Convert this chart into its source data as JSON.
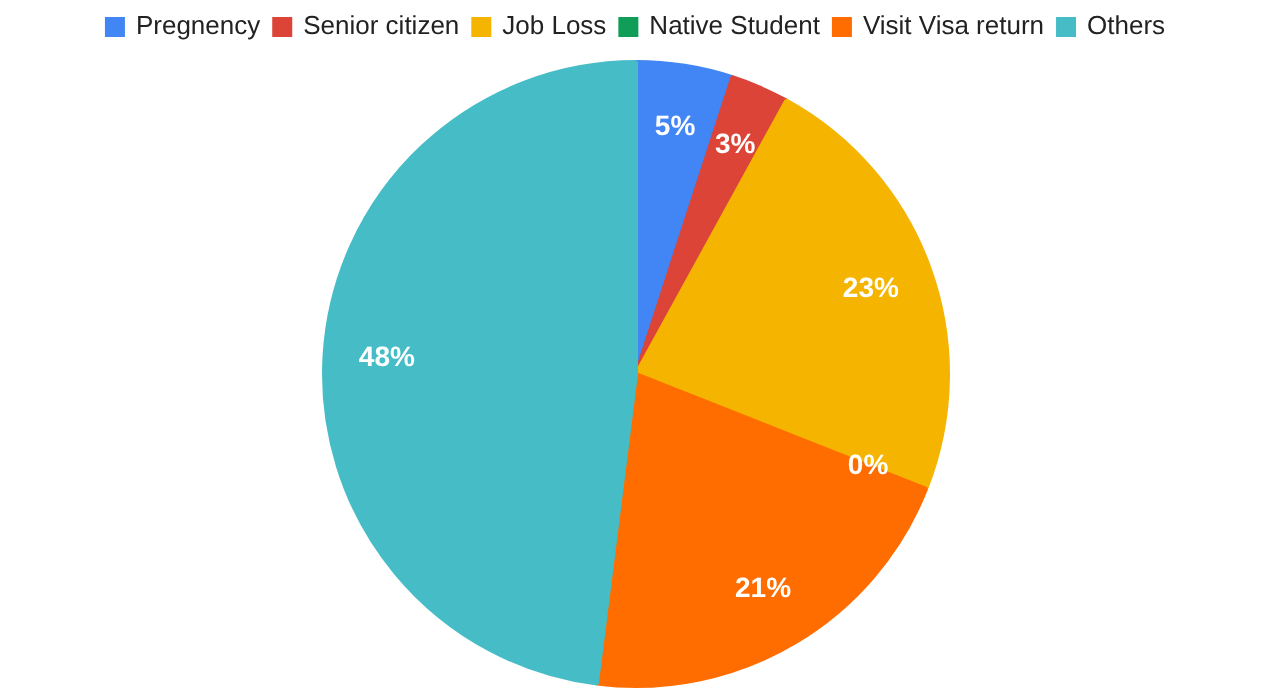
{
  "chart_data": {
    "type": "pie",
    "categories": [
      "Pregnency",
      "Senior citizen",
      "Job Loss",
      "Native Student",
      "Visit Visa return",
      "Others"
    ],
    "values": [
      5,
      3,
      23,
      0,
      21,
      48
    ],
    "colors": [
      "#4285f4",
      "#db4437",
      "#f4b400",
      "#0f9d58",
      "#ff6d01",
      "#46bdc6"
    ],
    "value_labels": [
      "5%",
      "3%",
      "23%",
      "0%",
      "21%",
      "48%"
    ],
    "legend": "top"
  }
}
